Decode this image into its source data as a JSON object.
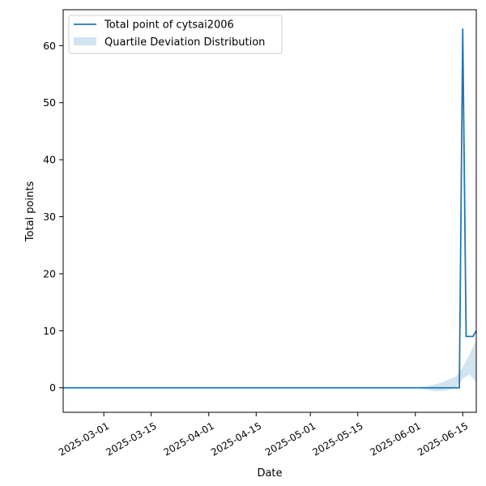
{
  "chart_data": {
    "type": "line",
    "xlabel": "Date",
    "ylabel": "Total points",
    "xlim": [
      "2025-02-17",
      "2025-06-19"
    ],
    "ylim": [
      -4.3,
      66.3
    ],
    "x_ticks": [
      "2025-03-01",
      "2025-03-15",
      "2025-04-01",
      "2025-04-15",
      "2025-05-01",
      "2025-05-15",
      "2025-06-01",
      "2025-06-15"
    ],
    "y_ticks": [
      0,
      10,
      20,
      30,
      40,
      50,
      60
    ],
    "legend_position": "top-left",
    "grid": false,
    "series": [
      {
        "name": "Total point of cytsai2006",
        "color": "#1f77b4",
        "x": [
          "2025-02-17",
          "2025-06-14",
          "2025-06-15",
          "2025-06-16",
          "2025-06-17",
          "2025-06-18",
          "2025-06-19"
        ],
        "y": [
          0,
          0,
          63,
          9,
          9,
          9,
          10
        ]
      }
    ],
    "band": {
      "name": "Quartile Deviation Distribution",
      "color": "#1f77b4",
      "opacity": 0.2,
      "x": [
        "2025-02-17",
        "2025-06-01",
        "2025-06-04",
        "2025-06-07",
        "2025-06-10",
        "2025-06-13",
        "2025-06-15",
        "2025-06-17",
        "2025-06-19"
      ],
      "upper": [
        0,
        0,
        0.2,
        0.6,
        1.2,
        2.0,
        3.6,
        5.8,
        8.4
      ],
      "lower": [
        0,
        0,
        -0.3,
        -0.6,
        -0.5,
        0.0,
        1.6,
        2.3,
        1.0
      ]
    }
  }
}
